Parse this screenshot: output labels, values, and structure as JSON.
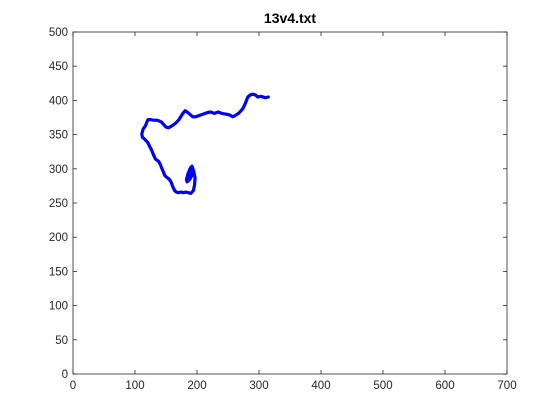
{
  "chart_data": {
    "type": "line",
    "title": "13v4.txt",
    "xlabel": "",
    "ylabel": "",
    "xlim": [
      0,
      700
    ],
    "ylim": [
      0,
      500
    ],
    "x_ticks": [
      0,
      100,
      200,
      300,
      400,
      500,
      600,
      700
    ],
    "y_ticks": [
      0,
      50,
      100,
      150,
      200,
      250,
      300,
      350,
      400,
      450,
      500
    ],
    "x_tick_labels": [
      "0",
      "100",
      "200",
      "300",
      "400",
      "500",
      "600",
      "700"
    ],
    "y_tick_labels": [
      "0",
      "50",
      "100",
      "150",
      "200",
      "250",
      "300",
      "350",
      "400",
      "450",
      "500"
    ],
    "grid": false,
    "series": [
      {
        "color": "#0000ff",
        "x": [
          315,
          310,
          303,
          298,
          294,
          290,
          286,
          282,
          278,
          274,
          271,
          267,
          262,
          258,
          252,
          246,
          240,
          234,
          228,
          222,
          216,
          210,
          204,
          198,
          193,
          188,
          184,
          181,
          178,
          175,
          171,
          167,
          163,
          158,
          154,
          150,
          147,
          143,
          139,
          135,
          130,
          125,
          121,
          119,
          117,
          113,
          111,
          112,
          116,
          121,
          124,
          127,
          130,
          133,
          138,
          141,
          143,
          146,
          148,
          152,
          155,
          158,
          160,
          162,
          164,
          167,
          170,
          174,
          178,
          182,
          186,
          190,
          194,
          196,
          197,
          195,
          193,
          192,
          189,
          186,
          184,
          183,
          184,
          187,
          190,
          192,
          193,
          192,
          190,
          188,
          187,
          188
        ],
        "y": [
          405,
          404,
          406,
          405,
          408,
          409,
          408,
          405,
          396,
          388,
          385,
          381,
          378,
          376,
          379,
          380,
          381,
          383,
          381,
          383,
          382,
          380,
          378,
          376,
          376,
          380,
          383,
          385,
          382,
          378,
          372,
          368,
          365,
          362,
          360,
          361,
          364,
          368,
          370,
          371,
          371,
          372,
          372,
          368,
          363,
          358,
          351,
          346,
          343,
          338,
          332,
          327,
          320,
          314,
          311,
          306,
          301,
          295,
          290,
          287,
          285,
          281,
          276,
          272,
          268,
          266,
          265,
          266,
          265,
          266,
          265,
          264,
          268,
          276,
          287,
          295,
          301,
          304,
          300,
          294,
          288,
          284,
          281,
          283,
          287,
          291,
          296,
          300,
          302,
          299,
          292,
          286
        ]
      }
    ]
  }
}
